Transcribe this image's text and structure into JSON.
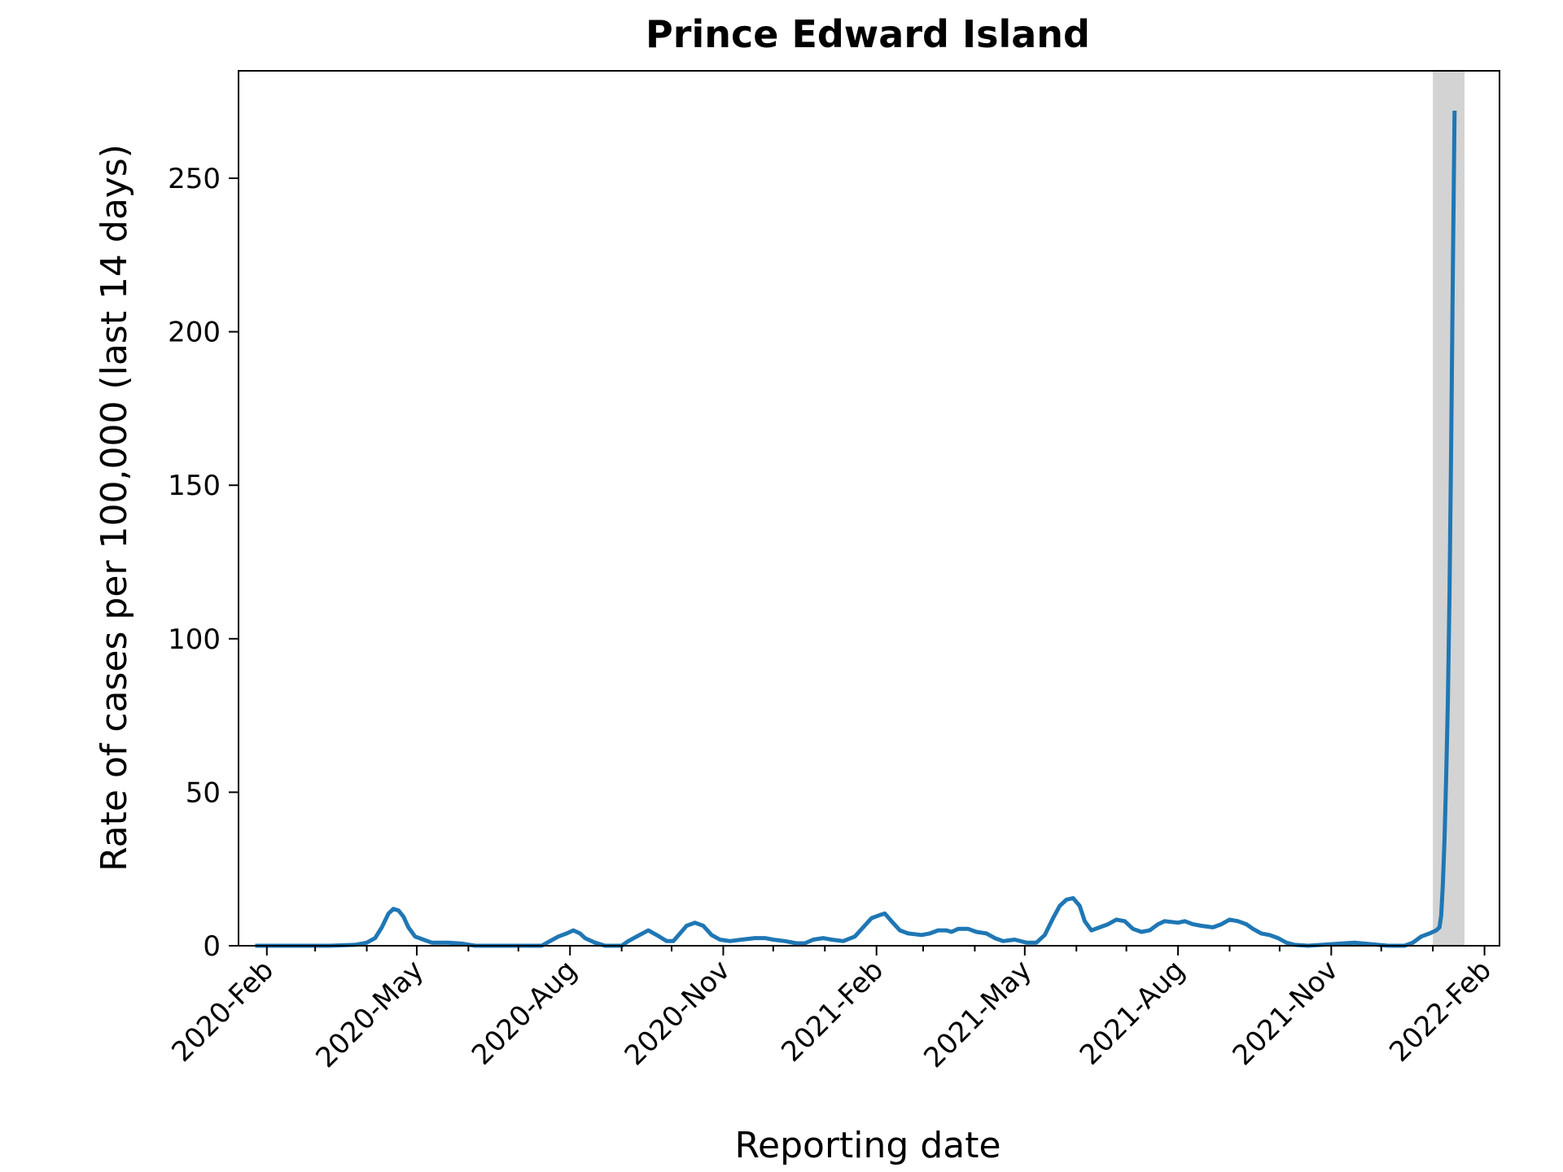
{
  "chart_data": {
    "type": "line",
    "title": "Prince Edward Island",
    "xlabel": "Reporting date",
    "ylabel": "Rate of cases per 100,000 (last 14 days)",
    "xlim": [
      "2020-01-15",
      "2022-02-10"
    ],
    "ylim": [
      0,
      285
    ],
    "grid": false,
    "legend": "none",
    "x_ticks": [
      {
        "date": "2020-02-01",
        "label": "2020-Feb"
      },
      {
        "date": "2020-05-01",
        "label": "2020-May"
      },
      {
        "date": "2020-08-01",
        "label": "2020-Aug"
      },
      {
        "date": "2020-11-01",
        "label": "2020-Nov"
      },
      {
        "date": "2021-02-01",
        "label": "2021-Feb"
      },
      {
        "date": "2021-05-01",
        "label": "2021-May"
      },
      {
        "date": "2021-08-01",
        "label": "2021-Aug"
      },
      {
        "date": "2021-11-01",
        "label": "2021-Nov"
      },
      {
        "date": "2022-02-01",
        "label": "2022-Feb"
      }
    ],
    "y_ticks": [
      {
        "value": 0,
        "label": "0"
      },
      {
        "value": 50,
        "label": "50"
      },
      {
        "value": 100,
        "label": "100"
      },
      {
        "value": 150,
        "label": "150"
      },
      {
        "value": 200,
        "label": "200"
      },
      {
        "value": 250,
        "label": "250"
      }
    ],
    "highlight_span": {
      "start": "2022-01-01",
      "end": "2022-01-20",
      "color": "#d3d3d3"
    },
    "series": [
      {
        "color": "#1f77b4",
        "points": [
          [
            "2020-01-25",
            0
          ],
          [
            "2020-03-10",
            0
          ],
          [
            "2020-03-25",
            0.3
          ],
          [
            "2020-04-01",
            1
          ],
          [
            "2020-04-06",
            2.5
          ],
          [
            "2020-04-10",
            6
          ],
          [
            "2020-04-14",
            10.5
          ],
          [
            "2020-04-17",
            12
          ],
          [
            "2020-04-20",
            11.5
          ],
          [
            "2020-04-23",
            9.5
          ],
          [
            "2020-04-26",
            6
          ],
          [
            "2020-04-30",
            3
          ],
          [
            "2020-05-05",
            2
          ],
          [
            "2020-05-10",
            1
          ],
          [
            "2020-05-20",
            1
          ],
          [
            "2020-05-28",
            0.7
          ],
          [
            "2020-06-05",
            0
          ],
          [
            "2020-07-15",
            0
          ],
          [
            "2020-07-20",
            1.5
          ],
          [
            "2020-07-25",
            3
          ],
          [
            "2020-07-30",
            4
          ],
          [
            "2020-08-03",
            5
          ],
          [
            "2020-08-07",
            4
          ],
          [
            "2020-08-10",
            2.5
          ],
          [
            "2020-08-16",
            1
          ],
          [
            "2020-08-22",
            0
          ],
          [
            "2020-09-01",
            0
          ],
          [
            "2020-09-05",
            1.5
          ],
          [
            "2020-09-10",
            3
          ],
          [
            "2020-09-17",
            5
          ],
          [
            "2020-09-22",
            3.5
          ],
          [
            "2020-09-28",
            1.5
          ],
          [
            "2020-10-02",
            1.5
          ],
          [
            "2020-10-06",
            4
          ],
          [
            "2020-10-10",
            6.5
          ],
          [
            "2020-10-15",
            7.5
          ],
          [
            "2020-10-20",
            6.5
          ],
          [
            "2020-10-25",
            3.5
          ],
          [
            "2020-10-30",
            2
          ],
          [
            "2020-11-05",
            1.5
          ],
          [
            "2020-11-12",
            2
          ],
          [
            "2020-11-20",
            2.5
          ],
          [
            "2020-11-26",
            2.5
          ],
          [
            "2020-12-01",
            2
          ],
          [
            "2020-12-08",
            1.5
          ],
          [
            "2020-12-15",
            0.8
          ],
          [
            "2020-12-20",
            0.8
          ],
          [
            "2020-12-25",
            2
          ],
          [
            "2020-12-31",
            2.5
          ],
          [
            "2021-01-05",
            2
          ],
          [
            "2021-01-12",
            1.5
          ],
          [
            "2021-01-19",
            3
          ],
          [
            "2021-01-24",
            6
          ],
          [
            "2021-01-29",
            9
          ],
          [
            "2021-02-03",
            10
          ],
          [
            "2021-02-06",
            10.5
          ],
          [
            "2021-02-10",
            8
          ],
          [
            "2021-02-15",
            5
          ],
          [
            "2021-02-20",
            4
          ],
          [
            "2021-02-28",
            3.5
          ],
          [
            "2021-03-05",
            4
          ],
          [
            "2021-03-10",
            5
          ],
          [
            "2021-03-15",
            5
          ],
          [
            "2021-03-18",
            4.5
          ],
          [
            "2021-03-22",
            5.5
          ],
          [
            "2021-03-28",
            5.5
          ],
          [
            "2021-04-02",
            4.5
          ],
          [
            "2021-04-08",
            4
          ],
          [
            "2021-04-13",
            2.5
          ],
          [
            "2021-04-18",
            1.5
          ],
          [
            "2021-04-25",
            2
          ],
          [
            "2021-05-02",
            1
          ],
          [
            "2021-05-08",
            1
          ],
          [
            "2021-05-13",
            3.5
          ],
          [
            "2021-05-18",
            9
          ],
          [
            "2021-05-22",
            13
          ],
          [
            "2021-05-26",
            15
          ],
          [
            "2021-05-30",
            15.5
          ],
          [
            "2021-06-03",
            13
          ],
          [
            "2021-06-06",
            8
          ],
          [
            "2021-06-10",
            5
          ],
          [
            "2021-06-15",
            6
          ],
          [
            "2021-06-20",
            7
          ],
          [
            "2021-06-25",
            8.5
          ],
          [
            "2021-06-30",
            8
          ],
          [
            "2021-07-05",
            5.5
          ],
          [
            "2021-07-10",
            4.5
          ],
          [
            "2021-07-15",
            5
          ],
          [
            "2021-07-20",
            7
          ],
          [
            "2021-07-24",
            8
          ],
          [
            "2021-08-01",
            7.5
          ],
          [
            "2021-08-05",
            8
          ],
          [
            "2021-08-10",
            7
          ],
          [
            "2021-08-15",
            6.5
          ],
          [
            "2021-08-22",
            6
          ],
          [
            "2021-08-27",
            7
          ],
          [
            "2021-09-01",
            8.5
          ],
          [
            "2021-09-06",
            8
          ],
          [
            "2021-09-11",
            7
          ],
          [
            "2021-09-15",
            5.5
          ],
          [
            "2021-09-20",
            4
          ],
          [
            "2021-09-25",
            3.5
          ],
          [
            "2021-09-30",
            2.5
          ],
          [
            "2021-10-05",
            1
          ],
          [
            "2021-10-10",
            0.3
          ],
          [
            "2021-10-18",
            0
          ],
          [
            "2021-11-01",
            0.5
          ],
          [
            "2021-11-15",
            1
          ],
          [
            "2021-11-25",
            0.5
          ],
          [
            "2021-12-05",
            0
          ],
          [
            "2021-12-15",
            0
          ],
          [
            "2021-12-20",
            1
          ],
          [
            "2021-12-25",
            3
          ],
          [
            "2021-12-30",
            4
          ],
          [
            "2022-01-03",
            5
          ],
          [
            "2022-01-05",
            6
          ]
        ],
        "note_points_alt": []
      }
    ]
  }
}
